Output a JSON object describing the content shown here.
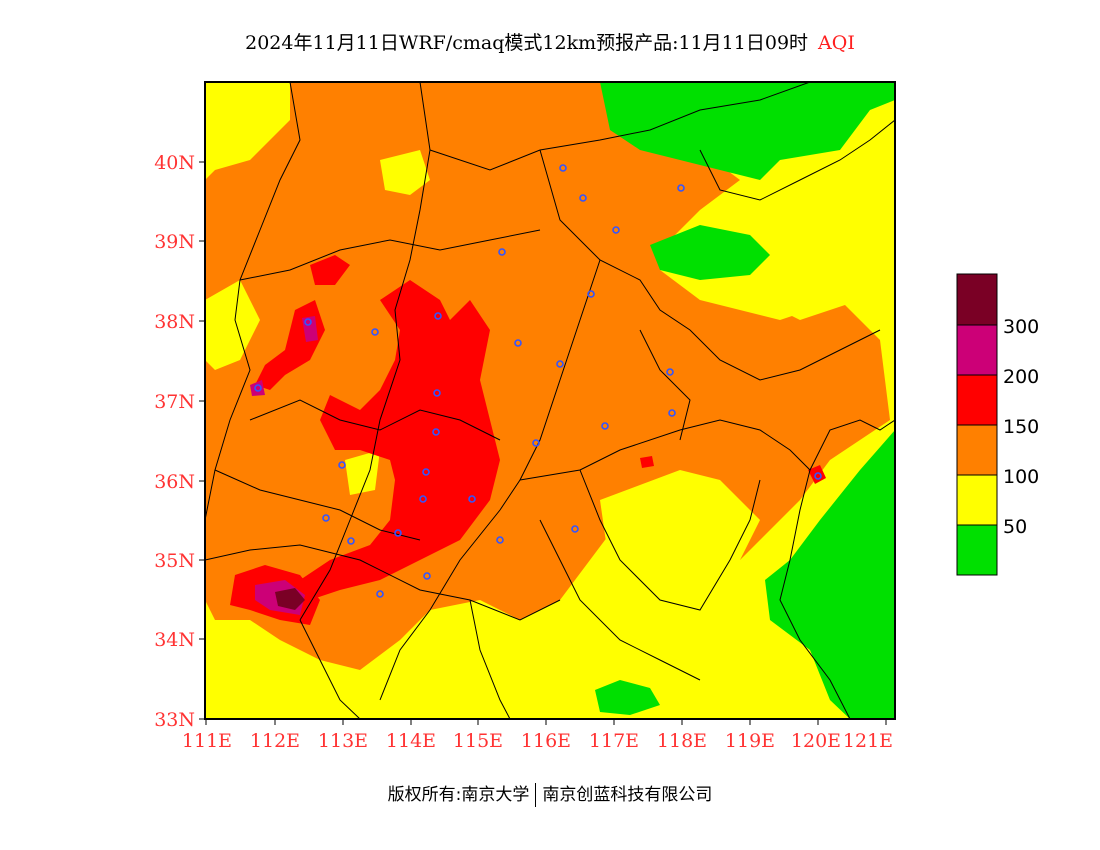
{
  "title": {
    "main": "2024年11月11日WRF/cmaq模式12km预报产品:11月11日09时",
    "pollutant": "AQI"
  },
  "axes": {
    "lat_ticks": [
      "40N",
      "39N",
      "38N",
      "37N",
      "36N",
      "35N",
      "34N",
      "33N"
    ],
    "lon_ticks": [
      "111E",
      "112E",
      "113E",
      "114E",
      "115E",
      "116E",
      "117E",
      "118E",
      "119E",
      "120E",
      "121E"
    ]
  },
  "legend": {
    "colors": [
      "#00e000",
      "#ffff00",
      "#ff8000",
      "#ff0000",
      "#cc0077",
      "#7a0025"
    ],
    "labels": [
      "50",
      "100",
      "150",
      "200",
      "300"
    ]
  },
  "footer": {
    "left": "版权所有:南京大学",
    "right": "南京创蓝科技有限公司"
  }
}
